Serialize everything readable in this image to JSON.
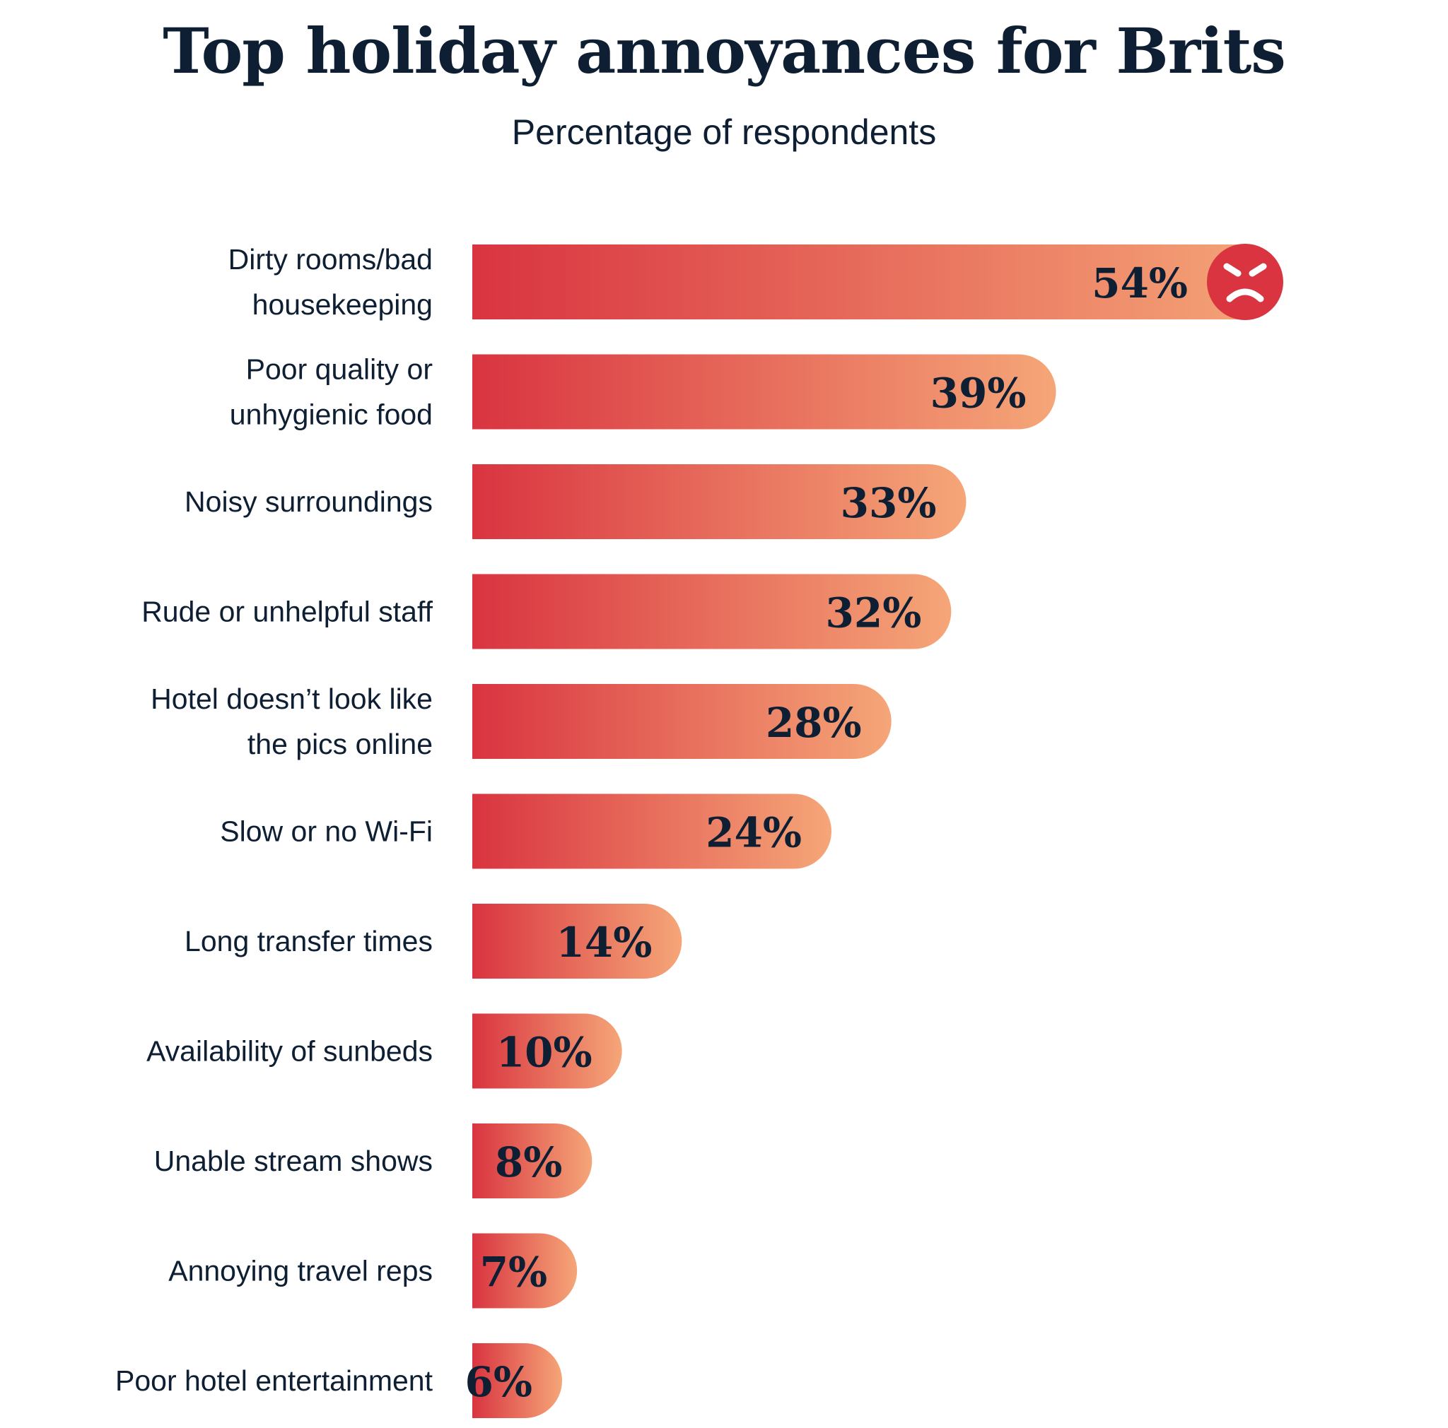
{
  "chart_data": {
    "type": "bar",
    "orientation": "horizontal",
    "title": "Top holiday annoyances for Brits",
    "subtitle": "Percentage of respondents",
    "categories": [
      [
        "Dirty rooms/bad",
        "housekeeping"
      ],
      [
        "Poor quality or",
        "unhygienic food"
      ],
      [
        "Noisy surroundings"
      ],
      [
        "Rude or unhelpful staff"
      ],
      [
        "Hotel doesn’t look like",
        "the pics online"
      ],
      [
        "Slow or no Wi-Fi"
      ],
      [
        "Long transfer times"
      ],
      [
        "Availability of sunbeds"
      ],
      [
        "Unable stream shows"
      ],
      [
        "Annoying travel reps"
      ],
      [
        "Poor hotel entertainment"
      ]
    ],
    "values": [
      54,
      39,
      33,
      32,
      28,
      24,
      14,
      10,
      8,
      7,
      6
    ],
    "value_labels": [
      "54%",
      "39%",
      "33%",
      "32%",
      "28%",
      "24%",
      "14%",
      "10%",
      "8%",
      "7%",
      "6%"
    ],
    "unit": "%",
    "xlim": [
      0,
      54
    ],
    "grid": false,
    "legend": "none",
    "highlight_icon": "angry-face-icon",
    "colors": {
      "bar_start": "#d93440",
      "bar_end": "#f5a678",
      "text": "#0e1f33",
      "icon_bg": "#d93440",
      "icon_fg": "#ffffff"
    }
  }
}
